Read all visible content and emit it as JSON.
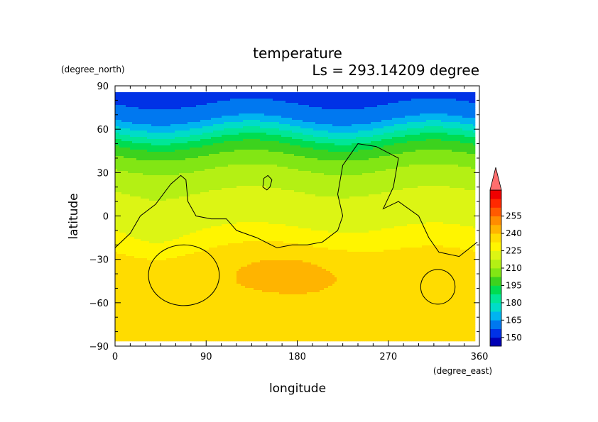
{
  "chart_data": {
    "type": "heatmap",
    "title": "temperature",
    "subtitle": "Ls = 293.14209 degree",
    "xlabel": "longitude",
    "ylabel": "latitude",
    "xunits": "(degree_east)",
    "yunits": "(degree_north)",
    "xlim": [
      0,
      360
    ],
    "ylim": [
      -90,
      90
    ],
    "xticks": [
      0,
      90,
      180,
      270,
      360
    ],
    "yticks": [
      90,
      60,
      30,
      0,
      -30,
      -60,
      -90
    ],
    "xtick_labels": [
      "0",
      "90",
      "180",
      "270",
      "360"
    ],
    "ytick_labels": [
      "90",
      "60",
      "30",
      "0",
      "−30",
      "−60",
      "−90"
    ],
    "colorbar": {
      "levels": [
        150,
        165,
        180,
        195,
        210,
        225,
        240,
        255
      ],
      "labels": [
        "150",
        "165",
        "180",
        "195",
        "210",
        "225",
        "240",
        "255"
      ],
      "colors": [
        "#0000b4",
        "#0032e6",
        "#0078f0",
        "#00b4f0",
        "#00dcc8",
        "#00e696",
        "#00dc50",
        "#3cd21e",
        "#82e614",
        "#b4f014",
        "#dcf514",
        "#fff500",
        "#ffdc00",
        "#ffb400",
        "#ff8c00",
        "#ff5a00",
        "#ff2800",
        "#f00000",
        "#ff6e6e"
      ]
    },
    "latitudes": [
      85,
      70,
      60,
      50,
      40,
      30,
      20,
      10,
      0,
      -10,
      -20,
      -30,
      -40,
      -50,
      -60,
      -70,
      -80,
      -85
    ],
    "zonal_temperature": [
      148,
      152,
      168,
      186,
      197,
      204,
      209,
      212,
      214,
      218,
      223,
      227,
      229,
      230,
      230,
      229,
      228,
      227
    ],
    "warm_core": {
      "lon": 175,
      "lat": -37,
      "value": 236
    }
  }
}
